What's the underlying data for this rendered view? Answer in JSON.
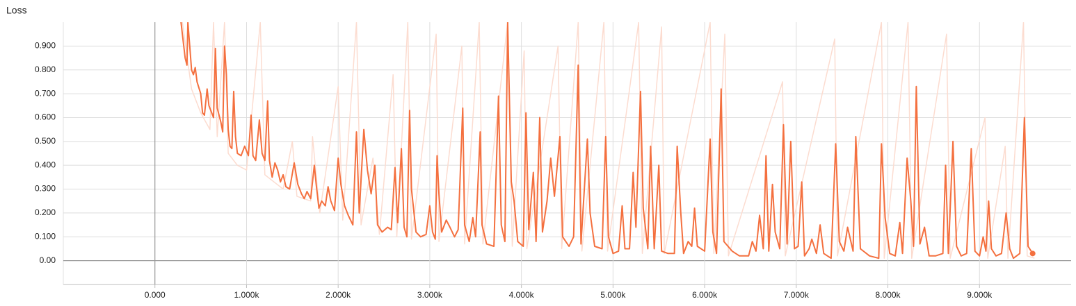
{
  "chart_data": {
    "type": "line",
    "title": "Loss",
    "xlim": [
      -1000,
      10000
    ],
    "ylim": [
      -0.1,
      1.0
    ],
    "grid": true,
    "xticks": [
      {
        "value": 0,
        "label": "0.000"
      },
      {
        "value": 1000,
        "label": "1.000k"
      },
      {
        "value": 2000,
        "label": "2.000k"
      },
      {
        "value": 3000,
        "label": "3.000k"
      },
      {
        "value": 4000,
        "label": "4.000k"
      },
      {
        "value": 5000,
        "label": "5.000k"
      },
      {
        "value": 6000,
        "label": "6.000k"
      },
      {
        "value": 7000,
        "label": "7.000k"
      },
      {
        "value": 8000,
        "label": "8.000k"
      },
      {
        "value": 9000,
        "label": "9.000k"
      }
    ],
    "yticks": [
      {
        "value": 0,
        "label": "0.00"
      },
      {
        "value": 0.1,
        "label": "0.100"
      },
      {
        "value": 0.2,
        "label": "0.200"
      },
      {
        "value": 0.3,
        "label": "0.300"
      },
      {
        "value": 0.4,
        "label": "0.400"
      },
      {
        "value": 0.5,
        "label": "0.500"
      },
      {
        "value": 0.6,
        "label": "0.600"
      },
      {
        "value": 0.7,
        "label": "0.700"
      },
      {
        "value": 0.8,
        "label": "0.800"
      },
      {
        "value": 0.9,
        "label": "0.900"
      }
    ],
    "series": [
      {
        "color": "#fcdcd0",
        "x": [
          300,
          400,
          500,
          600,
          640,
          680,
          760,
          800,
          900,
          1000,
          1150,
          1200,
          1400,
          1500,
          1550,
          1700,
          1720,
          1800,
          2000,
          2050,
          2200,
          2250,
          2380,
          2450,
          2600,
          2640,
          2760,
          2800,
          3070,
          3100,
          3350,
          3380,
          3540,
          3580,
          3850,
          3900,
          4030,
          4060,
          4400,
          4440,
          4620,
          4660,
          4900,
          4940,
          5280,
          5320,
          5530,
          5560,
          6060,
          6100,
          6220,
          6260,
          6850,
          6880,
          7420,
          7450,
          7930,
          7960,
          8220,
          8260,
          8640,
          8680,
          9060,
          9090,
          9280,
          9310,
          9480,
          9520,
          9600
        ],
        "values": [
          1.0,
          0.72,
          0.62,
          0.55,
          1.0,
          0.52,
          1.0,
          0.45,
          0.4,
          0.38,
          1.0,
          0.36,
          0.3,
          0.5,
          0.27,
          0.25,
          0.52,
          0.2,
          0.73,
          0.17,
          1.0,
          0.15,
          0.43,
          0.11,
          0.78,
          0.1,
          1.0,
          0.09,
          0.95,
          0.08,
          0.9,
          0.07,
          1.0,
          0.07,
          1.0,
          0.06,
          0.88,
          0.05,
          0.9,
          0.05,
          1.0,
          0.04,
          1.0,
          0.04,
          1.0,
          0.03,
          0.98,
          0.03,
          1.0,
          0.03,
          0.95,
          0.02,
          0.75,
          0.02,
          0.93,
          0.02,
          1.0,
          0.01,
          1.0,
          0.01,
          0.95,
          0.01,
          0.6,
          0.01,
          0.48,
          0.01,
          1.0,
          0.02,
          0.01
        ]
      },
      {
        "color": "#f4703f",
        "x": [
          270,
          300,
          330,
          350,
          360,
          380,
          400,
          420,
          440,
          460,
          500,
          520,
          540,
          570,
          590,
          620,
          640,
          660,
          680,
          720,
          740,
          760,
          780,
          800,
          820,
          840,
          860,
          880,
          900,
          940,
          980,
          1020,
          1050,
          1070,
          1100,
          1140,
          1170,
          1200,
          1230,
          1250,
          1280,
          1310,
          1340,
          1370,
          1400,
          1430,
          1470,
          1520,
          1560,
          1600,
          1630,
          1660,
          1700,
          1740,
          1760,
          1790,
          1820,
          1860,
          1890,
          1920,
          1960,
          2000,
          2030,
          2070,
          2110,
          2160,
          2200,
          2230,
          2280,
          2320,
          2360,
          2400,
          2430,
          2480,
          2540,
          2580,
          2620,
          2650,
          2690,
          2720,
          2750,
          2780,
          2800,
          2850,
          2900,
          2960,
          3000,
          3030,
          3060,
          3080,
          3100,
          3130,
          3180,
          3220,
          3270,
          3310,
          3360,
          3380,
          3430,
          3470,
          3500,
          3550,
          3570,
          3620,
          3700,
          3750,
          3780,
          3820,
          3850,
          3890,
          3920,
          3960,
          4020,
          4050,
          4080,
          4130,
          4160,
          4200,
          4230,
          4280,
          4320,
          4360,
          4420,
          4450,
          4520,
          4570,
          4620,
          4650,
          4720,
          4750,
          4800,
          4880,
          4920,
          4950,
          5000,
          5060,
          5100,
          5130,
          5180,
          5220,
          5250,
          5300,
          5330,
          5380,
          5410,
          5450,
          5500,
          5530,
          5600,
          5670,
          5700,
          5740,
          5770,
          5820,
          5860,
          5890,
          5920,
          6000,
          6060,
          6090,
          6130,
          6180,
          6210,
          6300,
          6380,
          6480,
          6520,
          6560,
          6600,
          6640,
          6670,
          6700,
          6740,
          6770,
          6820,
          6860,
          6900,
          6940,
          6980,
          7020,
          7060,
          7090,
          7140,
          7170,
          7220,
          7260,
          7300,
          7380,
          7430,
          7470,
          7520,
          7560,
          7620,
          7650,
          7700,
          7800,
          7900,
          7930,
          7970,
          8020,
          8080,
          8130,
          8160,
          8210,
          8250,
          8280,
          8310,
          8350,
          8400,
          8450,
          8520,
          8600,
          8630,
          8660,
          8710,
          8750,
          8800,
          8860,
          8910,
          8950,
          9000,
          9040,
          9070,
          9100,
          9130,
          9180,
          9240,
          9290,
          9330,
          9370,
          9440,
          9490,
          9530,
          9580
        ],
        "values": [
          1.05,
          0.95,
          0.85,
          0.82,
          1.0,
          0.9,
          0.8,
          0.78,
          0.81,
          0.75,
          0.7,
          0.62,
          0.61,
          0.72,
          0.65,
          0.62,
          0.6,
          0.89,
          0.64,
          0.58,
          0.54,
          0.9,
          0.78,
          0.55,
          0.48,
          0.47,
          0.71,
          0.52,
          0.45,
          0.44,
          0.48,
          0.44,
          0.61,
          0.44,
          0.42,
          0.59,
          0.45,
          0.42,
          0.67,
          0.42,
          0.35,
          0.41,
          0.38,
          0.33,
          0.36,
          0.31,
          0.3,
          0.41,
          0.32,
          0.28,
          0.26,
          0.29,
          0.26,
          0.4,
          0.32,
          0.22,
          0.25,
          0.23,
          0.31,
          0.25,
          0.21,
          0.43,
          0.32,
          0.23,
          0.19,
          0.15,
          0.54,
          0.2,
          0.55,
          0.38,
          0.28,
          0.4,
          0.15,
          0.12,
          0.14,
          0.13,
          0.39,
          0.16,
          0.47,
          0.14,
          0.1,
          0.63,
          0.3,
          0.12,
          0.1,
          0.11,
          0.23,
          0.12,
          0.09,
          0.44,
          0.28,
          0.12,
          0.17,
          0.14,
          0.1,
          0.13,
          0.64,
          0.15,
          0.08,
          0.18,
          0.1,
          0.54,
          0.15,
          0.07,
          0.06,
          0.69,
          0.15,
          0.08,
          1.0,
          0.33,
          0.25,
          0.08,
          0.06,
          0.62,
          0.13,
          0.37,
          0.08,
          0.6,
          0.12,
          0.25,
          0.43,
          0.27,
          0.52,
          0.1,
          0.06,
          0.1,
          0.82,
          0.07,
          0.51,
          0.2,
          0.06,
          0.05,
          0.52,
          0.1,
          0.03,
          0.04,
          0.23,
          0.05,
          0.05,
          0.37,
          0.14,
          0.71,
          0.22,
          0.05,
          0.48,
          0.05,
          0.4,
          0.04,
          0.03,
          0.03,
          0.48,
          0.2,
          0.03,
          0.08,
          0.06,
          0.22,
          0.06,
          0.04,
          0.51,
          0.12,
          0.03,
          0.72,
          0.08,
          0.04,
          0.02,
          0.02,
          0.08,
          0.04,
          0.19,
          0.05,
          0.44,
          0.04,
          0.32,
          0.12,
          0.05,
          0.57,
          0.07,
          0.5,
          0.05,
          0.06,
          0.33,
          0.02,
          0.05,
          0.09,
          0.03,
          0.15,
          0.03,
          0.01,
          0.49,
          0.08,
          0.04,
          0.14,
          0.04,
          0.52,
          0.05,
          0.02,
          0.01,
          0.49,
          0.18,
          0.03,
          0.02,
          0.16,
          0.03,
          0.43,
          0.25,
          0.06,
          0.73,
          0.07,
          0.14,
          0.02,
          0.02,
          0.03,
          0.4,
          0.03,
          0.5,
          0.06,
          0.02,
          0.03,
          0.47,
          0.04,
          0.02,
          0.1,
          0.04,
          0.25,
          0.05,
          0.02,
          0.03,
          0.2,
          0.05,
          0.01,
          0.03,
          0.6,
          0.06,
          0.03
        ]
      }
    ]
  }
}
